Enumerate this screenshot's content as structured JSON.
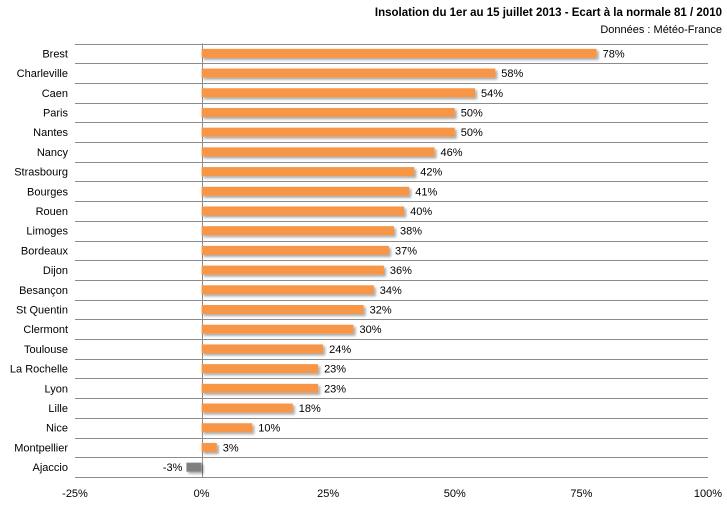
{
  "chart_data": {
    "type": "bar",
    "orientation": "horizontal",
    "title": "Insolation du 1er au 15 juillet 2013 - Ecart à la normale 81 / 2010",
    "subtitle": "Données : Météo-France",
    "categories": [
      "Brest",
      "Charleville",
      "Caen",
      "Paris",
      "Nantes",
      "Nancy",
      "Strasbourg",
      "Bourges",
      "Rouen",
      "Limoges",
      "Bordeaux",
      "Dijon",
      "Besançon",
      "St Quentin",
      "Clermont",
      "Toulouse",
      "La Rochelle",
      "Lyon",
      "Lille",
      "Nice",
      "Montpellier",
      "Ajaccio"
    ],
    "values": [
      78,
      58,
      54,
      50,
      50,
      46,
      42,
      41,
      40,
      38,
      37,
      36,
      34,
      32,
      30,
      24,
      23,
      23,
      18,
      10,
      3,
      -3
    ],
    "data_labels": [
      "78%",
      "58%",
      "54%",
      "50%",
      "50%",
      "46%",
      "42%",
      "41%",
      "40%",
      "38%",
      "37%",
      "36%",
      "34%",
      "32%",
      "30%",
      "24%",
      "23%",
      "23%",
      "18%",
      "10%",
      "3%",
      "-3%"
    ],
    "xlim": [
      -25,
      100
    ],
    "x_ticks": [
      "-25%",
      "0%",
      "25%",
      "50%",
      "75%",
      "100%"
    ],
    "x_tick_values": [
      -25,
      0,
      25,
      50,
      75,
      100
    ],
    "grid": "horizontal lines between categories",
    "colors": {
      "positive": "#f79646",
      "negative": "#808080",
      "grid": "#8c8c8c"
    }
  }
}
